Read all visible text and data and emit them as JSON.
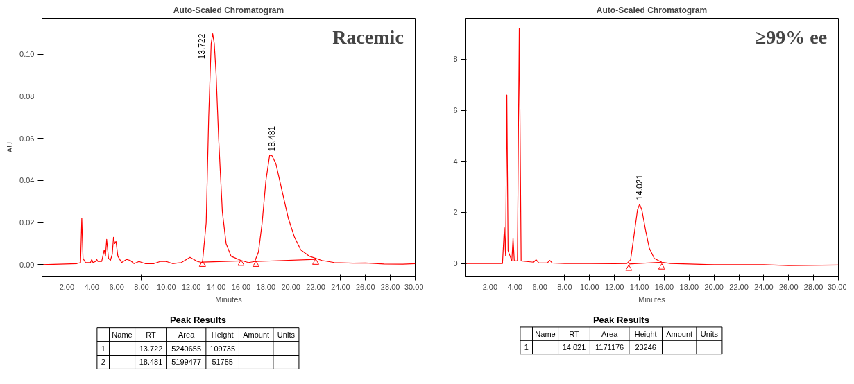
{
  "chart_data": [
    {
      "type": "line",
      "title": "Auto-Scaled Chromatogram",
      "xlabel": "Minutes",
      "ylabel": "AU",
      "grid": false,
      "xlim": [
        0,
        30
      ],
      "ylim": [
        -0.0055,
        0.117
      ],
      "xticks": [
        {
          "value": 2,
          "label": "2.00"
        },
        {
          "value": 4,
          "label": "4.00"
        },
        {
          "value": 6,
          "label": "6.00"
        },
        {
          "value": 8,
          "label": "8.00"
        },
        {
          "value": 10,
          "label": "10.00"
        },
        {
          "value": 12,
          "label": "12.00"
        },
        {
          "value": 14,
          "label": "14.00"
        },
        {
          "value": 16,
          "label": "16.00"
        },
        {
          "value": 18,
          "label": "18.00"
        },
        {
          "value": 20,
          "label": "20.00"
        },
        {
          "value": 22,
          "label": "22.00"
        },
        {
          "value": 24,
          "label": "24.00"
        },
        {
          "value": 26,
          "label": "26.00"
        },
        {
          "value": 28,
          "label": "28.00"
        },
        {
          "value": 30,
          "label": "30.00"
        }
      ],
      "yticks": [
        {
          "value": 0,
          "label": "0.00"
        },
        {
          "value": 0.02,
          "label": "0.02"
        },
        {
          "value": 0.04,
          "label": "0.04"
        },
        {
          "value": 0.06,
          "label": "0.06"
        },
        {
          "value": 0.08,
          "label": "0.08"
        },
        {
          "value": 0.1,
          "label": "0.10"
        }
      ],
      "series": [
        {
          "type": "line",
          "color": "#ff0000",
          "x": [
            0,
            2.8,
            3.1,
            3.2,
            3.3,
            3.5,
            3.9,
            4.0,
            4.1,
            4.3,
            4.4,
            4.5,
            4.8,
            5.0,
            5.1,
            5.2,
            5.35,
            5.5,
            5.65,
            5.75,
            5.85,
            5.95,
            6.1,
            6.4,
            6.8,
            7.1,
            7.4,
            7.8,
            8.3,
            9.0,
            9.5,
            10.0,
            10.5,
            11.2,
            11.9,
            12.5,
            12.9,
            13.2,
            13.4,
            13.6,
            13.722,
            13.85,
            14.0,
            14.2,
            14.5,
            14.8,
            15.2,
            16.0,
            16.6,
            17.1,
            17.4,
            17.7,
            18.0,
            18.3,
            18.481,
            18.8,
            19.3,
            19.8,
            20.3,
            20.8,
            21.5,
            22.5,
            23.5,
            25,
            26,
            27.5,
            29,
            30
          ],
          "values": [
            0,
            0.0005,
            0.001,
            0.022,
            0.003,
            0.001,
            0.001,
            0.0025,
            0.001,
            0.0015,
            0.0025,
            0.0015,
            0.0015,
            0.007,
            0.004,
            0.012,
            0.003,
            0.002,
            0.005,
            0.013,
            0.01,
            0.011,
            0.004,
            0.001,
            0.0025,
            0.002,
            0.0005,
            0.0015,
            0.0005,
            0.0005,
            0.0015,
            0.0015,
            0.0005,
            0.001,
            0.0035,
            0.0015,
            0.001,
            0.02,
            0.07,
            0.105,
            0.1097,
            0.105,
            0.09,
            0.06,
            0.025,
            0.01,
            0.004,
            0.002,
            0.001,
            0.0015,
            0.006,
            0.02,
            0.04,
            0.052,
            0.0518,
            0.048,
            0.035,
            0.022,
            0.013,
            0.007,
            0.004,
            0.002,
            0.001,
            0.0007,
            0.0008,
            0.0003,
            0.0002,
            0.0005
          ]
        },
        {
          "type": "line",
          "color": "#ff0000",
          "x": [
            12.9,
            16.0
          ],
          "values": [
            0.0012,
            0.0018
          ]
        },
        {
          "type": "line",
          "color": "#ff0000",
          "x": [
            17.2,
            22.0
          ],
          "values": [
            0.0015,
            0.0025
          ]
        },
        {
          "type": "scatter",
          "marker": "triangle",
          "color": "#ff0000",
          "x": [
            12.9,
            16.0,
            17.2,
            22.0
          ],
          "values": [
            0.0,
            0.0005,
            0.0,
            0.001
          ]
        }
      ],
      "annotations": [
        "Racemic",
        {
          "text": "13.722",
          "x": 13.722,
          "y": 0.1097
        },
        {
          "text": "18.481",
          "x": 18.481,
          "y": 0.0518
        },
        "Peak Results",
        "Name",
        "RT",
        "Area",
        "Height",
        "Amount",
        "Units",
        "1",
        "13.722",
        "5240655",
        "109735",
        "2",
        "18.481",
        "5199477",
        "51755"
      ]
    },
    {
      "type": "line",
      "title": "Auto-Scaled Chromatogram",
      "xlabel": "Minutes",
      "grid": false,
      "xlim": [
        0,
        30
      ],
      "ylim": [
        -0.5,
        9.6
      ],
      "xticks": [
        {
          "value": 2,
          "label": "2.00"
        },
        {
          "value": 4,
          "label": "4.00"
        },
        {
          "value": 6,
          "label": "6.00"
        },
        {
          "value": 8,
          "label": "8.00"
        },
        {
          "value": 10,
          "label": "10.00"
        },
        {
          "value": 12,
          "label": "12.00"
        },
        {
          "value": 14,
          "label": "14.00"
        },
        {
          "value": 16,
          "label": "16.00"
        },
        {
          "value": 18,
          "label": "18.00"
        },
        {
          "value": 20,
          "label": "20.00"
        },
        {
          "value": 22,
          "label": "22.00"
        },
        {
          "value": 24,
          "label": "24.00"
        },
        {
          "value": 26,
          "label": "26.00"
        },
        {
          "value": 28,
          "label": "28.00"
        },
        {
          "value": 30,
          "label": "30.00"
        }
      ],
      "yticks": [
        0,
        2,
        4,
        6,
        8
      ],
      "series": [
        {
          "type": "line",
          "color": "#ff0000",
          "x": [
            0,
            3.0,
            3.15,
            3.25,
            3.35,
            3.45,
            3.75,
            3.85,
            3.95,
            4.2,
            4.35,
            4.5,
            5.5,
            5.7,
            5.9,
            6.6,
            6.8,
            7.0,
            8,
            10,
            12,
            13,
            13.3,
            13.6,
            13.85,
            14.021,
            14.2,
            14.5,
            14.8,
            15.2,
            15.8,
            16.5,
            18,
            20,
            24,
            26,
            30
          ],
          "values": [
            0,
            0,
            1.4,
            0.3,
            6.6,
            0.5,
            0.1,
            1.0,
            0.1,
            0.1,
            9.2,
            0.1,
            0.05,
            0.15,
            0.03,
            0.02,
            0.12,
            0.02,
            0,
            0,
            -0.01,
            0,
            0.15,
            1.2,
            2.1,
            2.32,
            2.1,
            1.3,
            0.6,
            0.2,
            0.05,
            0,
            -0.02,
            -0.05,
            -0.05,
            -0.08,
            -0.06
          ]
        },
        {
          "type": "line",
          "color": "#ff0000",
          "x": [
            13.15,
            15.8
          ],
          "values": [
            -0.02,
            0.05
          ]
        },
        {
          "type": "scatter",
          "marker": "triangle",
          "color": "#ff0000",
          "x": [
            13.15,
            15.8
          ],
          "values": [
            -0.2,
            -0.15
          ]
        }
      ],
      "annotations": [
        "≥99% ee",
        {
          "text": "14.021",
          "x": 14.021,
          "y": 2.32
        },
        "Peak Results",
        "Name",
        "RT",
        "Area",
        "Height",
        "Amount",
        "Units",
        "1",
        "14.021",
        "1171176",
        "23246"
      ]
    }
  ]
}
